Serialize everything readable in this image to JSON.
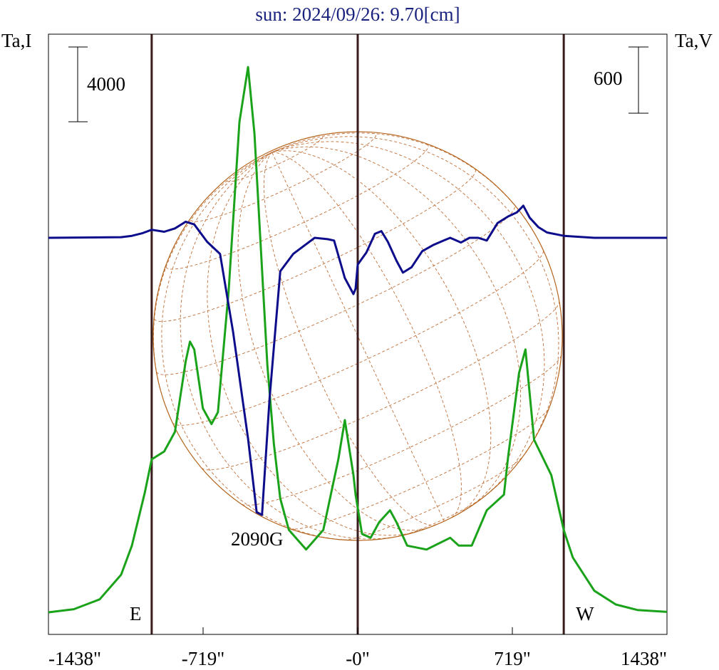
{
  "chart_data": {
    "type": "line",
    "title": "sun: 2024/09/26: 9.70[cm]",
    "left_axis_label": "Ta,I",
    "right_axis_label": "Ta,V",
    "left_scale_label": "4000",
    "right_scale_label": "600",
    "x_ticks": [
      {
        "value": -1438,
        "label": "-1438\""
      },
      {
        "value": -719,
        "label": "-719\""
      },
      {
        "value": 0,
        "label": "-0\""
      },
      {
        "value": 719,
        "label": "719\""
      },
      {
        "value": 1438,
        "label": "1438\""
      }
    ],
    "xlim": [
      -1438,
      1438
    ],
    "limb_markers": [
      {
        "x": -958,
        "label": "E"
      },
      {
        "x": 0,
        "label": ""
      },
      {
        "x": 958,
        "label": "W"
      }
    ],
    "annotation": {
      "text": "2090G",
      "x": -440
    },
    "colors": {
      "title": "#1a237e",
      "intensity": "#1aa31a",
      "polarization": "#0d0d8c",
      "limb_lines": "#3a1c1c",
      "disk": "#b5651d",
      "grid": "#c0703a"
    },
    "series": [
      {
        "role": "intensity",
        "points": [
          [
            -1438,
            0
          ],
          [
            -1320,
            80
          ],
          [
            -1200,
            330
          ],
          [
            -1100,
            960
          ],
          [
            -1050,
            1700
          ],
          [
            -990,
            3050
          ],
          [
            -958,
            3900
          ],
          [
            -900,
            4100
          ],
          [
            -850,
            4600
          ],
          [
            -800,
            6400
          ],
          [
            -780,
            6900
          ],
          [
            -760,
            6700
          ],
          [
            -720,
            5200
          ],
          [
            -680,
            4800
          ],
          [
            -650,
            5100
          ],
          [
            -600,
            8200
          ],
          [
            -550,
            12500
          ],
          [
            -510,
            13900
          ],
          [
            -480,
            12200
          ],
          [
            -420,
            6300
          ],
          [
            -390,
            4300
          ],
          [
            -360,
            2900
          ],
          [
            -320,
            2100
          ],
          [
            -240,
            1600
          ],
          [
            -160,
            2100
          ],
          [
            -90,
            3900
          ],
          [
            -60,
            4900
          ],
          [
            -20,
            3500
          ],
          [
            -10,
            3000
          ],
          [
            20,
            2000
          ],
          [
            60,
            1900
          ],
          [
            100,
            2300
          ],
          [
            150,
            2600
          ],
          [
            180,
            2300
          ],
          [
            230,
            1700
          ],
          [
            320,
            1600
          ],
          [
            430,
            1900
          ],
          [
            470,
            1700
          ],
          [
            530,
            1700
          ],
          [
            600,
            2600
          ],
          [
            640,
            2800
          ],
          [
            680,
            3000
          ],
          [
            700,
            4000
          ],
          [
            750,
            6100
          ],
          [
            780,
            6700
          ],
          [
            820,
            4400
          ],
          [
            900,
            3500
          ],
          [
            958,
            2100
          ],
          [
            1000,
            1400
          ],
          [
            1100,
            550
          ],
          [
            1200,
            200
          ],
          [
            1300,
            60
          ],
          [
            1438,
            10
          ]
        ]
      },
      {
        "role": "polarization",
        "points": [
          [
            -1438,
            0
          ],
          [
            -1100,
            5
          ],
          [
            -1050,
            15
          ],
          [
            -1000,
            35
          ],
          [
            -958,
            60
          ],
          [
            -900,
            45
          ],
          [
            -850,
            70
          ],
          [
            -800,
            120
          ],
          [
            -760,
            100
          ],
          [
            -700,
            -30
          ],
          [
            -640,
            -120
          ],
          [
            -580,
            -700
          ],
          [
            -510,
            -1500
          ],
          [
            -470,
            -2050
          ],
          [
            -445,
            -2070
          ],
          [
            -410,
            -1200
          ],
          [
            -360,
            -250
          ],
          [
            -300,
            -120
          ],
          [
            -250,
            -60
          ],
          [
            -200,
            0
          ],
          [
            -140,
            -10
          ],
          [
            -110,
            -20
          ],
          [
            -60,
            -300
          ],
          [
            -20,
            -420
          ],
          [
            -10,
            -380
          ],
          [
            0,
            -200
          ],
          [
            40,
            -110
          ],
          [
            80,
            30
          ],
          [
            110,
            50
          ],
          [
            140,
            -30
          ],
          [
            180,
            -170
          ],
          [
            210,
            -260
          ],
          [
            250,
            -220
          ],
          [
            300,
            -100
          ],
          [
            350,
            -55
          ],
          [
            400,
            -20
          ],
          [
            430,
            0
          ],
          [
            480,
            -35
          ],
          [
            520,
            0
          ],
          [
            560,
            0
          ],
          [
            600,
            -20
          ],
          [
            650,
            110
          ],
          [
            700,
            160
          ],
          [
            740,
            190
          ],
          [
            770,
            240
          ],
          [
            800,
            150
          ],
          [
            840,
            80
          ],
          [
            880,
            40
          ],
          [
            958,
            15
          ],
          [
            1100,
            0
          ],
          [
            1438,
            0
          ]
        ]
      }
    ]
  }
}
